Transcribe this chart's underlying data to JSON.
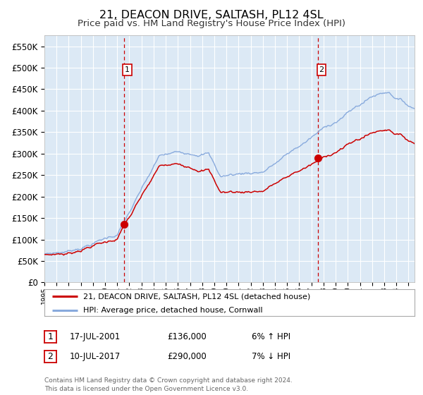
{
  "title": "21, DEACON DRIVE, SALTASH, PL12 4SL",
  "subtitle": "Price paid vs. HM Land Registry's House Price Index (HPI)",
  "ylim": [
    0,
    575000
  ],
  "yticks": [
    0,
    50000,
    100000,
    150000,
    200000,
    250000,
    300000,
    350000,
    400000,
    450000,
    500000,
    550000
  ],
  "background_color": "#dce9f5",
  "grid_color": "#ffffff",
  "line_color_hpi": "#88aadd",
  "line_color_price": "#cc0000",
  "marker_color": "#cc0000",
  "vline_color": "#cc0000",
  "transaction1": {
    "date_num": 2001.54,
    "price": 136000,
    "label": "1",
    "date_str": "17-JUL-2001",
    "price_str": "£136,000",
    "pct_str": "6% ↑ HPI"
  },
  "transaction2": {
    "date_num": 2017.53,
    "price": 290000,
    "label": "2",
    "date_str": "10-JUL-2017",
    "price_str": "£290,000",
    "pct_str": "7% ↓ HPI"
  },
  "legend_label_price": "21, DEACON DRIVE, SALTASH, PL12 4SL (detached house)",
  "legend_label_hpi": "HPI: Average price, detached house, Cornwall",
  "footer": "Contains HM Land Registry data © Crown copyright and database right 2024.\nThis data is licensed under the Open Government Licence v3.0.",
  "xstart": 1995.0,
  "xend": 2025.5
}
